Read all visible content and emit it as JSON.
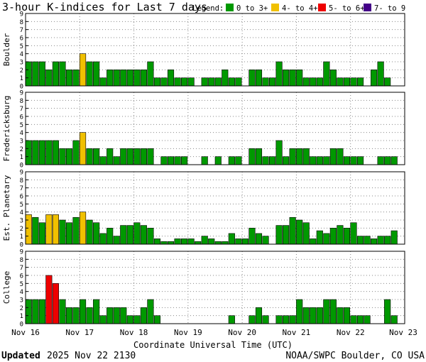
{
  "title": "3-hour K-indices for Last 7 days",
  "legend": {
    "label": "Legend:",
    "items": [
      {
        "text": "0 to 3+",
        "color": "#009900"
      },
      {
        "text": "4- to 4+",
        "color": "#f0c000"
      },
      {
        "text": "5- to 6+",
        "color": "#ee0000"
      },
      {
        "text": "7- to 9",
        "color": "#440088"
      }
    ]
  },
  "footer": {
    "updated_label": "Updated",
    "updated_value": "2025 Nov 22 2130",
    "source": "NOAA/SWPC Boulder, CO USA"
  },
  "chart_data": {
    "type": "bar",
    "xlabel": "Coordinate Universal Time (UTC)",
    "x_ticks": [
      "Nov 16",
      "Nov 17",
      "Nov 18",
      "Nov 19",
      "Nov 20",
      "Nov 21",
      "Nov 22",
      "Nov 23"
    ],
    "ylim": [
      0,
      9
    ],
    "y_ticks": [
      0,
      1,
      2,
      3,
      4,
      5,
      6,
      7,
      8,
      9
    ],
    "grid": true,
    "bins_per_day": 8,
    "color_scale": [
      {
        "max": 3.5,
        "color": "#009900"
      },
      {
        "max": 4.5,
        "color": "#f0c000"
      },
      {
        "max": 6.5,
        "color": "#ee0000"
      },
      {
        "max": 9,
        "color": "#440088"
      }
    ],
    "panels": [
      {
        "name": "Boulder",
        "values": [
          3,
          3,
          3,
          2,
          3,
          3,
          2,
          2,
          4,
          3,
          3,
          1,
          2,
          2,
          2,
          2,
          2,
          2,
          3,
          1,
          1,
          2,
          1,
          1,
          1,
          0,
          1,
          1,
          1,
          2,
          1,
          1,
          0,
          2,
          2,
          1,
          1,
          3,
          2,
          2,
          2,
          1,
          1,
          1,
          3,
          2,
          1,
          1,
          1,
          1,
          0,
          2,
          3,
          1,
          0
        ]
      },
      {
        "name": "Fredericksburg",
        "values": [
          3,
          3,
          3,
          3,
          3,
          2,
          2,
          3,
          4,
          2,
          2,
          1,
          2,
          1,
          2,
          2,
          2,
          2,
          2,
          0,
          1,
          1,
          1,
          1,
          0,
          0,
          1,
          0,
          1,
          0,
          1,
          1,
          0,
          2,
          2,
          1,
          1,
          3,
          1,
          2,
          2,
          2,
          1,
          1,
          1,
          2,
          2,
          1,
          1,
          1,
          0,
          0,
          1,
          1,
          1
        ]
      },
      {
        "name": "Est. Planetary",
        "values": [
          3.67,
          3.33,
          2.67,
          3.67,
          3.67,
          3,
          2.67,
          3.33,
          4,
          3,
          2.67,
          1.33,
          2,
          1,
          2.33,
          2.33,
          2.67,
          2.33,
          2,
          0.67,
          0.33,
          0.33,
          0.67,
          0.67,
          0.67,
          0.33,
          1,
          0.67,
          0.33,
          0.33,
          1.33,
          0.67,
          0.67,
          2,
          1.33,
          1,
          0,
          2.33,
          2.33,
          3.33,
          3,
          2.67,
          0.67,
          1.67,
          1.33,
          2,
          2.33,
          2,
          2.67,
          1,
          1,
          0.67,
          1,
          1,
          1.67
        ]
      },
      {
        "name": "College",
        "values": [
          3,
          3,
          3,
          6,
          5,
          3,
          2,
          2,
          3,
          2,
          3,
          1,
          2,
          2,
          2,
          1,
          1,
          2,
          3,
          1,
          0,
          0,
          0,
          0,
          0,
          0,
          0,
          0,
          0,
          0,
          1,
          0,
          0,
          1,
          2,
          1,
          0,
          1,
          1,
          1,
          3,
          2,
          2,
          2,
          3,
          3,
          2,
          2,
          1,
          1,
          1,
          0,
          0,
          3,
          1,
          0
        ]
      }
    ]
  }
}
